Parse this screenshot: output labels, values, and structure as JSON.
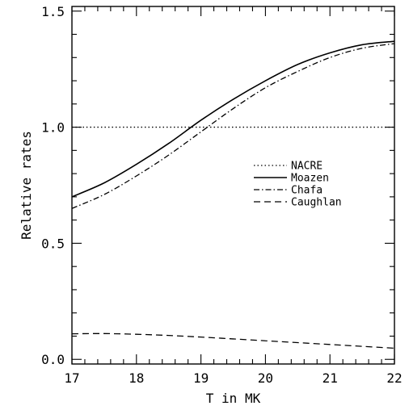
{
  "chart_data": {
    "type": "line",
    "xlabel": "T in MK",
    "ylabel": "Relative rates",
    "xlim": [
      17,
      22
    ],
    "ylim": [
      -0.02,
      1.52
    ],
    "x_ticks": [
      "17",
      "18",
      "19",
      "20",
      "21",
      "22"
    ],
    "y_ticks": [
      "0.0",
      "0.5",
      "1.0",
      "1.5"
    ],
    "legend_position": "right-middle",
    "series": [
      {
        "name": "NACRE",
        "style": "dotted",
        "x": [
          17,
          18,
          19,
          20,
          21,
          22
        ],
        "y": [
          1.0,
          1.0,
          1.0,
          1.0,
          1.0,
          1.0
        ]
      },
      {
        "name": "Moazen",
        "style": "solid",
        "x": [
          17,
          17.5,
          18,
          18.5,
          19,
          19.5,
          20,
          20.5,
          21,
          21.5,
          22
        ],
        "y": [
          0.7,
          0.76,
          0.84,
          0.93,
          1.03,
          1.12,
          1.2,
          1.27,
          1.32,
          1.355,
          1.37
        ]
      },
      {
        "name": "Chafa",
        "style": "dashdot",
        "x": [
          17,
          17.5,
          18,
          18.5,
          19,
          19.5,
          20,
          20.5,
          21,
          21.5,
          22
        ],
        "y": [
          0.65,
          0.71,
          0.79,
          0.88,
          0.98,
          1.08,
          1.17,
          1.24,
          1.3,
          1.34,
          1.36
        ]
      },
      {
        "name": "Caughlan",
        "style": "dashed",
        "x": [
          17,
          17.5,
          18,
          18.5,
          19,
          19.5,
          20,
          20.5,
          21,
          21.5,
          22
        ],
        "y": [
          0.11,
          0.111,
          0.108,
          0.103,
          0.096,
          0.088,
          0.08,
          0.072,
          0.064,
          0.056,
          0.048
        ]
      }
    ]
  }
}
